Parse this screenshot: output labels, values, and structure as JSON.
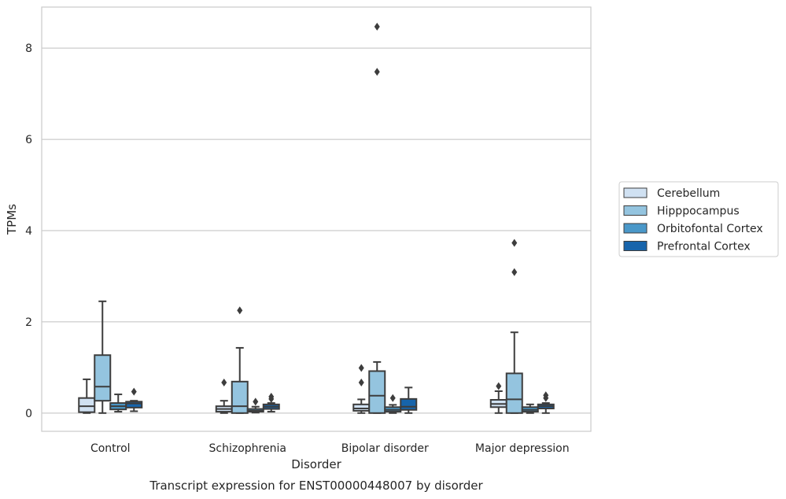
{
  "chart_data": {
    "type": "box",
    "title": "",
    "caption": "Transcript expression for ENST00000448007 by disorder",
    "xlabel": "Disorder",
    "ylabel": "TPMs",
    "ylim": [
      -0.4,
      8.9
    ],
    "yticks": [
      0,
      2,
      4,
      6,
      8
    ],
    "grid": "horizontal",
    "legend_position": "right",
    "categories": [
      "Control",
      "Schizophrenia",
      "Bipolar disorder",
      "Major depression"
    ],
    "series": [
      {
        "name": "Cerebellum",
        "color": "#d0e1f2",
        "boxes": [
          {
            "whislo": 0.0,
            "q1": 0.02,
            "med": 0.15,
            "q3": 0.33,
            "whishi": 0.74,
            "fliers": []
          },
          {
            "whislo": 0.0,
            "q1": 0.03,
            "med": 0.09,
            "q3": 0.15,
            "whishi": 0.27,
            "fliers": [
              0.67
            ]
          },
          {
            "whislo": 0.0,
            "q1": 0.05,
            "med": 0.1,
            "q3": 0.19,
            "whishi": 0.3,
            "fliers": [
              0.67,
              0.99
            ]
          },
          {
            "whislo": 0.0,
            "q1": 0.13,
            "med": 0.2,
            "q3": 0.29,
            "whishi": 0.48,
            "fliers": [
              0.59
            ]
          }
        ]
      },
      {
        "name": "Hipppocampus",
        "color": "#94c4df",
        "boxes": [
          {
            "whislo": 0.0,
            "q1": 0.27,
            "med": 0.58,
            "q3": 1.27,
            "whishi": 2.45,
            "fliers": []
          },
          {
            "whislo": 0.0,
            "q1": 0.0,
            "med": 0.15,
            "q3": 0.69,
            "whishi": 1.43,
            "fliers": [
              2.25
            ]
          },
          {
            "whislo": 0.0,
            "q1": 0.0,
            "med": 0.38,
            "q3": 0.92,
            "whishi": 1.12,
            "fliers": [
              7.48,
              8.47
            ]
          },
          {
            "whislo": 0.0,
            "q1": 0.0,
            "med": 0.3,
            "q3": 0.87,
            "whishi": 1.77,
            "fliers": [
              3.09,
              3.73
            ]
          }
        ]
      },
      {
        "name": "Orbitofontal Cortex",
        "color": "#4a98c9",
        "boxes": [
          {
            "whislo": 0.03,
            "q1": 0.08,
            "med": 0.15,
            "q3": 0.22,
            "whishi": 0.41,
            "fliers": []
          },
          {
            "whislo": 0.01,
            "q1": 0.03,
            "med": 0.05,
            "q3": 0.09,
            "whishi": 0.14,
            "fliers": [
              0.25
            ]
          },
          {
            "whislo": 0.0,
            "q1": 0.03,
            "med": 0.07,
            "q3": 0.13,
            "whishi": 0.18,
            "fliers": [
              0.33
            ]
          },
          {
            "whislo": 0.0,
            "q1": 0.03,
            "med": 0.07,
            "q3": 0.13,
            "whishi": 0.19,
            "fliers": []
          }
        ]
      },
      {
        "name": "Prefrontal Cortex",
        "color": "#1764ab",
        "boxes": [
          {
            "whislo": 0.04,
            "q1": 0.12,
            "med": 0.21,
            "q3": 0.25,
            "whishi": 0.27,
            "fliers": [
              0.47
            ]
          },
          {
            "whislo": 0.03,
            "q1": 0.09,
            "med": 0.14,
            "q3": 0.19,
            "whishi": 0.22,
            "fliers": [
              0.31,
              0.36
            ]
          },
          {
            "whislo": 0.0,
            "q1": 0.07,
            "med": 0.14,
            "q3": 0.31,
            "whishi": 0.56,
            "fliers": []
          },
          {
            "whislo": 0.0,
            "q1": 0.1,
            "med": 0.15,
            "q3": 0.19,
            "whishi": 0.22,
            "fliers": [
              0.33,
              0.39
            ]
          }
        ]
      }
    ]
  }
}
